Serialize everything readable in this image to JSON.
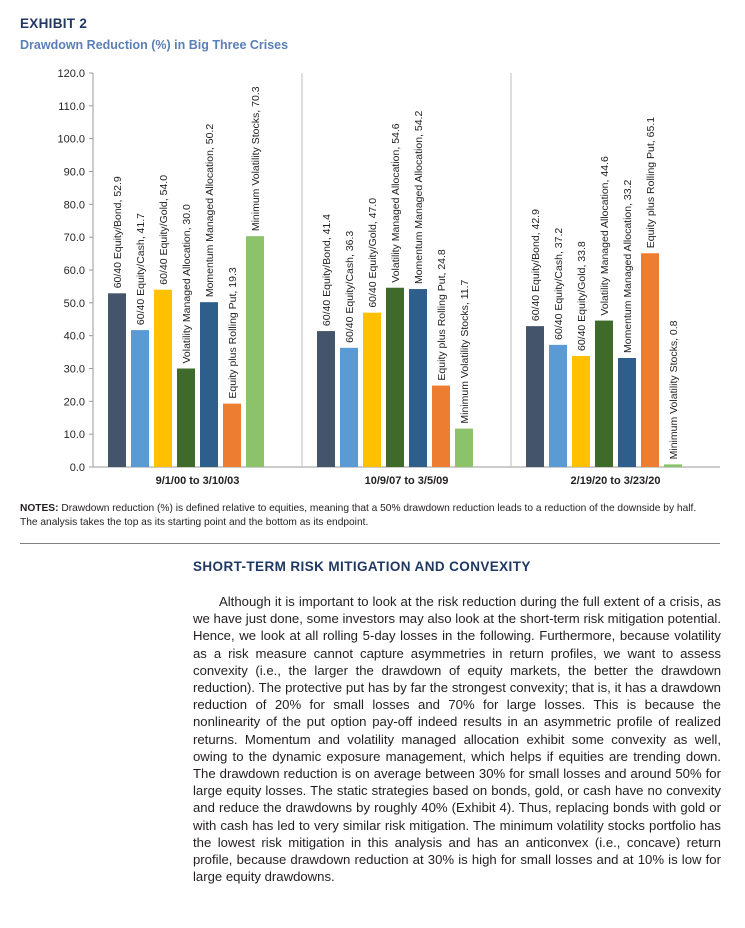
{
  "header": {
    "exhibit_label": "EXHIBIT 2",
    "exhibit_title": "Drawdown Reduction (%) in Big Three Crises"
  },
  "chart_data": {
    "type": "bar",
    "ylim": [
      0,
      120
    ],
    "yticks": [
      "0.0",
      "10.0",
      "20.0",
      "30.0",
      "40.0",
      "50.0",
      "60.0",
      "70.0",
      "80.0",
      "90.0",
      "100.0",
      "110.0",
      "120.0"
    ],
    "grid": false,
    "groups": [
      {
        "label": "9/1/00 to 3/10/03",
        "bars": [
          {
            "label": "60/40 Equity/Bond, 52.9",
            "value": 52.9,
            "color": "#44546a"
          },
          {
            "label": "60/40 Equity/Cash, 41.7",
            "value": 41.7,
            "color": "#5b9bd5"
          },
          {
            "label": "60/40 Equity/Gold, 54.0",
            "value": 54.0,
            "color": "#ffc000"
          },
          {
            "label": "Volatility Managed Allocation, 30.0",
            "value": 30.0,
            "color": "#3e6b2a"
          },
          {
            "label": "Momentum Managed Allocation, 50.2",
            "value": 50.2,
            "color": "#2e5e8c"
          },
          {
            "label": "Equity plus Rolling Put, 19.3",
            "value": 19.3,
            "color": "#ed7d31"
          },
          {
            "label": "Minimum Volatility Stocks, 70.3",
            "value": 70.3,
            "color": "#8cc36a"
          }
        ]
      },
      {
        "label": "10/9/07 to 3/5/09",
        "bars": [
          {
            "label": "60/40 Equity/Bond, 41.4",
            "value": 41.4,
            "color": "#44546a"
          },
          {
            "label": "60/40 Equity/Cash, 36.3",
            "value": 36.3,
            "color": "#5b9bd5"
          },
          {
            "label": "60/40 Equity/Gold, 47.0",
            "value": 47.0,
            "color": "#ffc000"
          },
          {
            "label": "Volatility Managed Allocation, 54.6",
            "value": 54.6,
            "color": "#3e6b2a"
          },
          {
            "label": "Momentum Managed Allocation, 54.2",
            "value": 54.2,
            "color": "#2e5e8c"
          },
          {
            "label": "Equity plus Rolling Put, 24.8",
            "value": 24.8,
            "color": "#ed7d31"
          },
          {
            "label": "Minimum Volatility Stocks, 11.7",
            "value": 11.7,
            "color": "#8cc36a"
          }
        ]
      },
      {
        "label": "2/19/20 to 3/23/20",
        "bars": [
          {
            "label": "60/40 Equity/Bond, 42.9",
            "value": 42.9,
            "color": "#44546a"
          },
          {
            "label": "60/40 Equity/Cash, 37.2",
            "value": 37.2,
            "color": "#5b9bd5"
          },
          {
            "label": "60/40 Equity/Gold, 33.8",
            "value": 33.8,
            "color": "#ffc000"
          },
          {
            "label": "Volatility Managed Allocation, 44.6",
            "value": 44.6,
            "color": "#3e6b2a"
          },
          {
            "label": "Momentum Managed Allocation, 33.2",
            "value": 33.2,
            "color": "#2e5e8c"
          },
          {
            "label": "Equity plus Rolling Put, 65.1",
            "value": 65.1,
            "color": "#ed7d31"
          },
          {
            "label": "Minimum Volatility Stocks, 0.8",
            "value": 0.8,
            "color": "#8cc36a"
          }
        ]
      }
    ]
  },
  "notes": {
    "prefix": "NOTES:",
    "text": " Drawdown reduction (%) is defined relative to equities, meaning that a 50% drawdown reduction leads to a reduction of the downside by half. The analysis takes the top as its starting point and the bottom as its endpoint."
  },
  "section": {
    "heading": "SHORT-TERM RISK MITIGATION AND CONVEXITY",
    "body": "Although it is important to look at the risk reduction during the full extent of a crisis, as we have just done, some investors may also look at the short-term risk mitigation potential. Hence, we look at all rolling 5-day losses in the following. Furthermore, because volatility as a risk measure cannot capture asymmetries in return profiles, we want to assess convexity (i.e., the larger the drawdown of equity markets, the better the drawdown reduction). The protective put has by far the strongest convexity; that is, it has a drawdown reduction of 20% for small losses and 70% for large losses. This is because the nonlinearity of the put option pay-off indeed results in an asymmetric profile of realized returns. Momentum and volatility managed allocation exhibit some convexity as well, owing to the dynamic exposure management, which helps if equities are trending down. The drawdown reduction is on average between 30% for small losses and around 50% for large equity losses. The static strategies based on bonds, gold, or cash have no convexity and reduce the drawdowns by roughly 40% (Exhibit 4). Thus, replacing bonds with gold or with cash has led to very similar risk mitigation. The minimum volatility stocks portfolio has the lowest risk mitigation in this analysis and has an anticonvex (i.e., concave) return profile, because drawdown reduction at 30% is high for small losses and at 10% is low for large equity drawdowns."
  }
}
